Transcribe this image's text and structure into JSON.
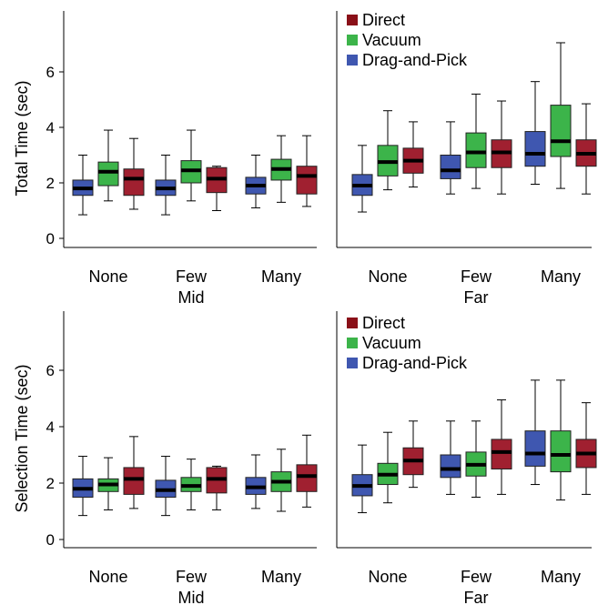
{
  "colors": {
    "Direct": "#a02030",
    "Vacuum": "#3cb44a",
    "Drag-and-Pick": "#3f57b0",
    "legend_Direct": "#8a1018"
  },
  "chart_data": [
    {
      "type": "box",
      "row": "top",
      "panel": "left",
      "ylabel": "Total Time (sec)",
      "yticks": [
        0,
        2,
        4,
        6
      ],
      "ylim": [
        0,
        8
      ],
      "categories": [
        "None",
        "Few",
        "Many"
      ],
      "condition_label": "Mid",
      "legend": false,
      "series": [
        {
          "name": "Drag-and-Pick",
          "boxes": [
            {
              "min": 0.85,
              "q1": 1.55,
              "median": 1.8,
              "q3": 2.1,
              "max": 3.0
            },
            {
              "min": 0.85,
              "q1": 1.55,
              "median": 1.8,
              "q3": 2.1,
              "max": 3.0
            },
            {
              "min": 1.1,
              "q1": 1.6,
              "median": 1.9,
              "q3": 2.2,
              "max": 3.0
            }
          ]
        },
        {
          "name": "Vacuum",
          "boxes": [
            {
              "min": 1.35,
              "q1": 1.9,
              "median": 2.4,
              "q3": 2.75,
              "max": 3.9
            },
            {
              "min": 1.35,
              "q1": 2.0,
              "median": 2.45,
              "q3": 2.8,
              "max": 3.9
            },
            {
              "min": 1.3,
              "q1": 2.1,
              "median": 2.5,
              "q3": 2.85,
              "max": 3.7
            }
          ]
        },
        {
          "name": "Direct",
          "boxes": [
            {
              "min": 1.05,
              "q1": 1.55,
              "median": 2.15,
              "q3": 2.5,
              "max": 3.6
            },
            {
              "min": 1.0,
              "q1": 1.65,
              "median": 2.15,
              "q3": 2.55,
              "max": 2.6
            },
            {
              "min": 1.15,
              "q1": 1.6,
              "median": 2.25,
              "q3": 2.6,
              "max": 3.7
            }
          ]
        }
      ]
    },
    {
      "type": "box",
      "row": "top",
      "panel": "right",
      "categories": [
        "None",
        "Few",
        "Many"
      ],
      "condition_label": "Far",
      "legend": true,
      "series": [
        {
          "name": "Drag-and-Pick",
          "boxes": [
            {
              "min": 0.95,
              "q1": 1.55,
              "median": 1.9,
              "q3": 2.3,
              "max": 3.35
            },
            {
              "min": 1.6,
              "q1": 2.15,
              "median": 2.45,
              "q3": 3.0,
              "max": 4.2
            },
            {
              "min": 1.95,
              "q1": 2.6,
              "median": 3.05,
              "q3": 3.85,
              "max": 5.65
            }
          ]
        },
        {
          "name": "Vacuum",
          "boxes": [
            {
              "min": 1.75,
              "q1": 2.25,
              "median": 2.75,
              "q3": 3.35,
              "max": 4.6
            },
            {
              "min": 1.8,
              "q1": 2.55,
              "median": 3.1,
              "q3": 3.8,
              "max": 5.2
            },
            {
              "min": 1.8,
              "q1": 2.95,
              "median": 3.5,
              "q3": 4.8,
              "max": 7.05
            }
          ]
        },
        {
          "name": "Direct",
          "boxes": [
            {
              "min": 1.85,
              "q1": 2.35,
              "median": 2.8,
              "q3": 3.25,
              "max": 4.2
            },
            {
              "min": 1.6,
              "q1": 2.55,
              "median": 3.1,
              "q3": 3.55,
              "max": 4.95
            },
            {
              "min": 1.6,
              "q1": 2.6,
              "median": 3.05,
              "q3": 3.55,
              "max": 4.85
            }
          ]
        }
      ]
    },
    {
      "type": "box",
      "row": "bottom",
      "panel": "left",
      "ylabel": "Selection Time (sec)",
      "yticks": [
        0,
        2,
        4,
        6
      ],
      "ylim": [
        0,
        8
      ],
      "categories": [
        "None",
        "Few",
        "Many"
      ],
      "condition_label": "Mid",
      "legend": false,
      "series": [
        {
          "name": "Drag-and-Pick",
          "boxes": [
            {
              "min": 0.85,
              "q1": 1.5,
              "median": 1.8,
              "q3": 2.15,
              "max": 2.95
            },
            {
              "min": 0.85,
              "q1": 1.5,
              "median": 1.75,
              "q3": 2.1,
              "max": 2.95
            },
            {
              "min": 1.1,
              "q1": 1.6,
              "median": 1.85,
              "q3": 2.2,
              "max": 3.0
            }
          ]
        },
        {
          "name": "Vacuum",
          "boxes": [
            {
              "min": 1.05,
              "q1": 1.7,
              "median": 1.95,
              "q3": 2.15,
              "max": 2.9
            },
            {
              "min": 1.05,
              "q1": 1.7,
              "median": 1.9,
              "q3": 2.2,
              "max": 2.85
            },
            {
              "min": 1.0,
              "q1": 1.7,
              "median": 2.05,
              "q3": 2.4,
              "max": 3.2
            }
          ]
        },
        {
          "name": "Direct",
          "boxes": [
            {
              "min": 1.1,
              "q1": 1.6,
              "median": 2.15,
              "q3": 2.55,
              "max": 3.65
            },
            {
              "min": 1.05,
              "q1": 1.65,
              "median": 2.15,
              "q3": 2.55,
              "max": 2.6
            },
            {
              "min": 1.15,
              "q1": 1.7,
              "median": 2.25,
              "q3": 2.65,
              "max": 3.7
            }
          ]
        }
      ]
    },
    {
      "type": "box",
      "row": "bottom",
      "panel": "right",
      "categories": [
        "None",
        "Few",
        "Many"
      ],
      "condition_label": "Far",
      "legend": true,
      "series": [
        {
          "name": "Drag-and-Pick",
          "boxes": [
            {
              "min": 0.95,
              "q1": 1.55,
              "median": 1.9,
              "q3": 2.3,
              "max": 3.35
            },
            {
              "min": 1.6,
              "q1": 2.2,
              "median": 2.5,
              "q3": 3.0,
              "max": 4.2
            },
            {
              "min": 1.95,
              "q1": 2.6,
              "median": 3.05,
              "q3": 3.85,
              "max": 5.65
            }
          ]
        },
        {
          "name": "Vacuum",
          "boxes": [
            {
              "min": 1.3,
              "q1": 1.95,
              "median": 2.3,
              "q3": 2.7,
              "max": 3.8
            },
            {
              "min": 1.5,
              "q1": 2.25,
              "median": 2.65,
              "q3": 3.1,
              "max": 4.2
            },
            {
              "min": 1.4,
              "q1": 2.4,
              "median": 3.0,
              "q3": 3.85,
              "max": 5.65
            }
          ]
        },
        {
          "name": "Direct",
          "boxes": [
            {
              "min": 1.85,
              "q1": 2.3,
              "median": 2.8,
              "q3": 3.25,
              "max": 4.2
            },
            {
              "min": 1.6,
              "q1": 2.5,
              "median": 3.1,
              "q3": 3.55,
              "max": 4.95
            },
            {
              "min": 1.6,
              "q1": 2.55,
              "median": 3.05,
              "q3": 3.55,
              "max": 4.85
            }
          ]
        }
      ]
    }
  ],
  "legend": {
    "items": [
      "Direct",
      "Vacuum",
      "Drag-and-Pick"
    ]
  }
}
